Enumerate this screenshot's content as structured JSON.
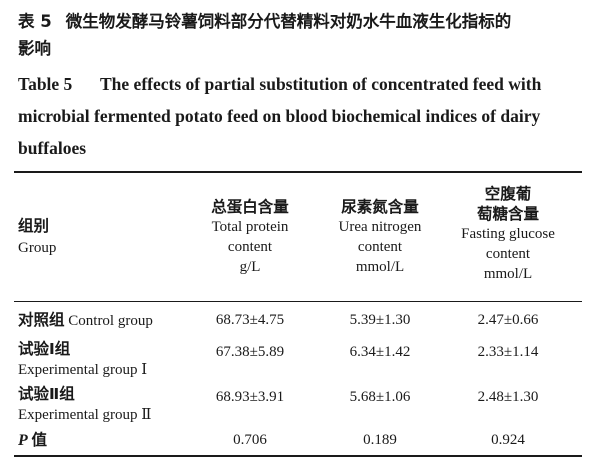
{
  "caption": {
    "cn_label": "表 5",
    "cn_text_line1": "微生物发酵马铃薯饲料部分代替精料对奶水牛血液生化指标的",
    "cn_text_line2": "影响",
    "en_label": "Table 5",
    "en_text": "The effects of partial substitution of concentrated feed with microbial fermented potato feed on blood biochemical indices of dairy buffaloes"
  },
  "header": {
    "group_zh": "组别",
    "group_en": "Group",
    "col1": {
      "zh": "总蛋白含量",
      "en1": "Total protein",
      "en2": "content",
      "unit": "g/L"
    },
    "col2": {
      "zh": "尿素氮含量",
      "en1": "Urea nitrogen",
      "en2": "content",
      "unit": "mmol/L"
    },
    "col3": {
      "zh1": "空腹葡",
      "zh2": "萄糖含量",
      "en1": "Fasting glucose",
      "en2": "content",
      "unit": "mmol/L"
    }
  },
  "rows": [
    {
      "zh": "对照组",
      "en": "Control group",
      "v1": "68.73±4.75",
      "v2": "5.39±1.30",
      "v3": "2.47±0.66"
    },
    {
      "zh": "试验Ⅰ组",
      "en": "Experimental group Ⅰ",
      "v1": "67.38±5.89",
      "v2": "6.34±1.42",
      "v3": "2.33±1.14"
    },
    {
      "zh": "试验Ⅱ组",
      "en": "Experimental group Ⅱ",
      "v1": "68.93±3.91",
      "v2": "5.68±1.06",
      "v3": "2.48±1.30"
    }
  ],
  "pvalue": {
    "p": "P",
    "zh": "值",
    "v1": "0.706",
    "v2": "0.189",
    "v3": "0.924"
  }
}
